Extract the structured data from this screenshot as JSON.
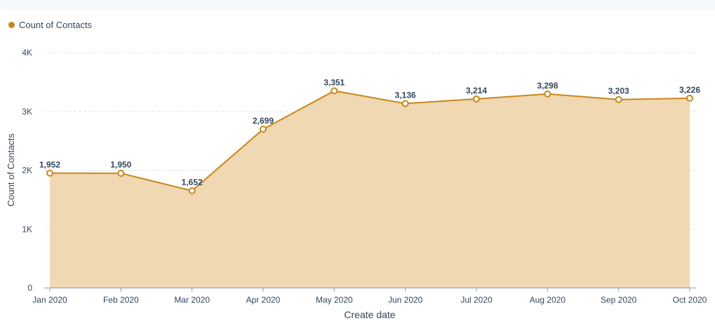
{
  "chart_data": {
    "type": "area",
    "categories": [
      "Jan 2020",
      "Feb 2020",
      "Mar 2020",
      "Apr 2020",
      "May 2020",
      "Jun 2020",
      "Jul 2020",
      "Aug 2020",
      "Sep 2020",
      "Oct 2020"
    ],
    "series": [
      {
        "name": "Count of Contacts",
        "values": [
          1952,
          1950,
          1652,
          2699,
          3351,
          3136,
          3214,
          3298,
          3203,
          3226
        ],
        "data_labels": [
          "1,952",
          "1,950",
          "1,652",
          "2,699",
          "3,351",
          "3,136",
          "3,214",
          "3,298",
          "3,203",
          "3,226"
        ]
      }
    ],
    "xlabel": "Create date",
    "ylabel": "Count of Contacts",
    "ylim": [
      0,
      4000
    ],
    "yticks": [
      0,
      1000,
      2000,
      3000,
      4000
    ],
    "ytick_labels": [
      "0",
      "1K",
      "2K",
      "3K",
      "4K"
    ],
    "grid": "horizontal dashed",
    "legend_position": "top-left",
    "colors": {
      "line": "#c9871b",
      "fill": "#efd8b2",
      "point_fill": "#ffffff",
      "grid": "#dfe3eb",
      "axis": "#7c98b6"
    }
  },
  "legend": {
    "label": "Count of Contacts"
  }
}
